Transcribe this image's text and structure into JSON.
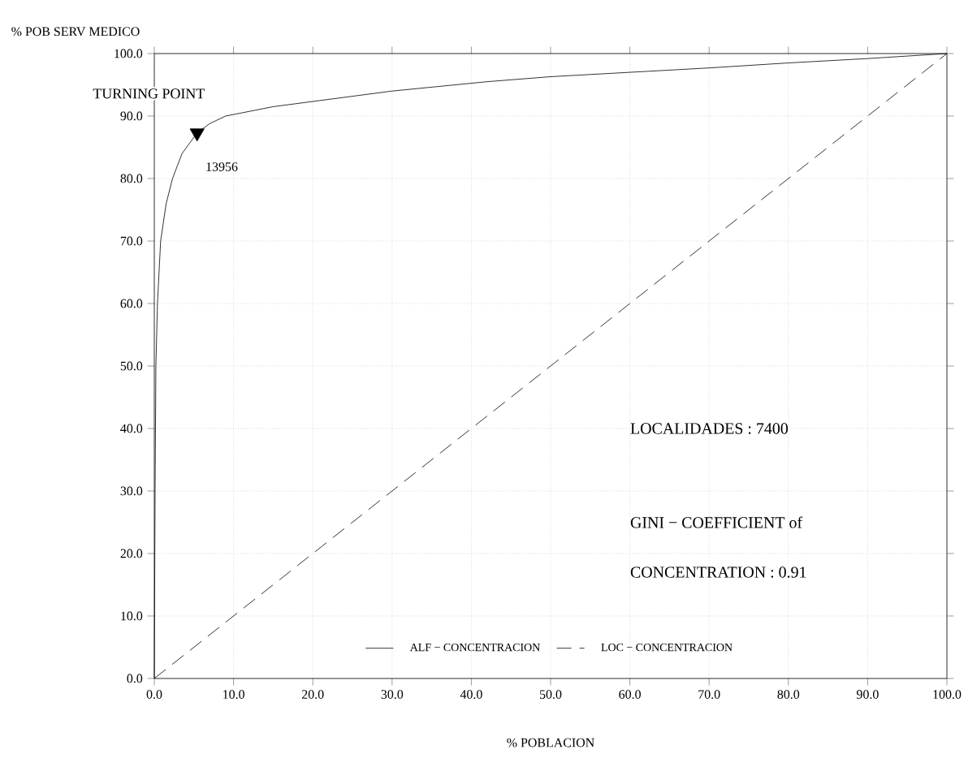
{
  "chart_data": {
    "type": "line",
    "xlabel": "% POBLACION",
    "ylabel": "% POB  SERV  MEDICO",
    "xlim": [
      0,
      100
    ],
    "ylim": [
      0,
      100
    ],
    "xticks": [
      {
        "value": 0,
        "label": "0.0"
      },
      {
        "value": 10,
        "label": "10.0"
      },
      {
        "value": 20,
        "label": "20.0"
      },
      {
        "value": 30,
        "label": "30.0"
      },
      {
        "value": 40,
        "label": "40.0"
      },
      {
        "value": 50,
        "label": "50.0"
      },
      {
        "value": 60,
        "label": "60.0"
      },
      {
        "value": 70,
        "label": "70.0"
      },
      {
        "value": 80,
        "label": "80.0"
      },
      {
        "value": 90,
        "label": "90.0"
      },
      {
        "value": 100,
        "label": "100.0"
      }
    ],
    "yticks": [
      {
        "value": 0,
        "label": "0.0"
      },
      {
        "value": 10,
        "label": "10.0"
      },
      {
        "value": 20,
        "label": "20.0"
      },
      {
        "value": 30,
        "label": "30.0"
      },
      {
        "value": 40,
        "label": "40.0"
      },
      {
        "value": 50,
        "label": "50.0"
      },
      {
        "value": 60,
        "label": "60.0"
      },
      {
        "value": 70,
        "label": "70.0"
      },
      {
        "value": 80,
        "label": "80.0"
      },
      {
        "value": 90,
        "label": "90.0"
      },
      {
        "value": 100,
        "label": "100.0"
      }
    ],
    "grid": true,
    "legend": "bottom",
    "series": [
      {
        "name": "ALF − CONCENTRACION",
        "color": "#000000",
        "line_style": "solid",
        "x": [
          0,
          0.1,
          0.2,
          0.4,
          0.8,
          1.5,
          2.3,
          3.5,
          5.4,
          7,
          9,
          11,
          15,
          21,
          30,
          42,
          50,
          60,
          70,
          80,
          90,
          100
        ],
        "values": [
          0,
          30,
          50,
          60,
          70,
          76,
          80,
          84,
          87.3,
          88.8,
          90,
          90.5,
          91.5,
          92.5,
          94,
          95.5,
          96.3,
          97,
          97.7,
          98.5,
          99.2,
          100
        ]
      },
      {
        "name": "LOC − CONCENTRACION",
        "color": "#000000",
        "line_style": "dashed",
        "x": [
          0,
          100
        ],
        "values": [
          0,
          100
        ]
      },
      {
        "type": "scatter",
        "marker": "triangle",
        "color": "#000000",
        "x": [
          5.4
        ],
        "values": [
          87.3
        ]
      }
    ],
    "annotations": [
      {
        "text": "TURNING POINT",
        "x": 5.4,
        "y": 87.3
      },
      {
        "text": "13956",
        "x": 5.4,
        "y": 87.3
      },
      "LOCALIDADES :    7400",
      "GINI − COEFFICIENT of",
      "CONCENTRATION : 0.91"
    ]
  }
}
